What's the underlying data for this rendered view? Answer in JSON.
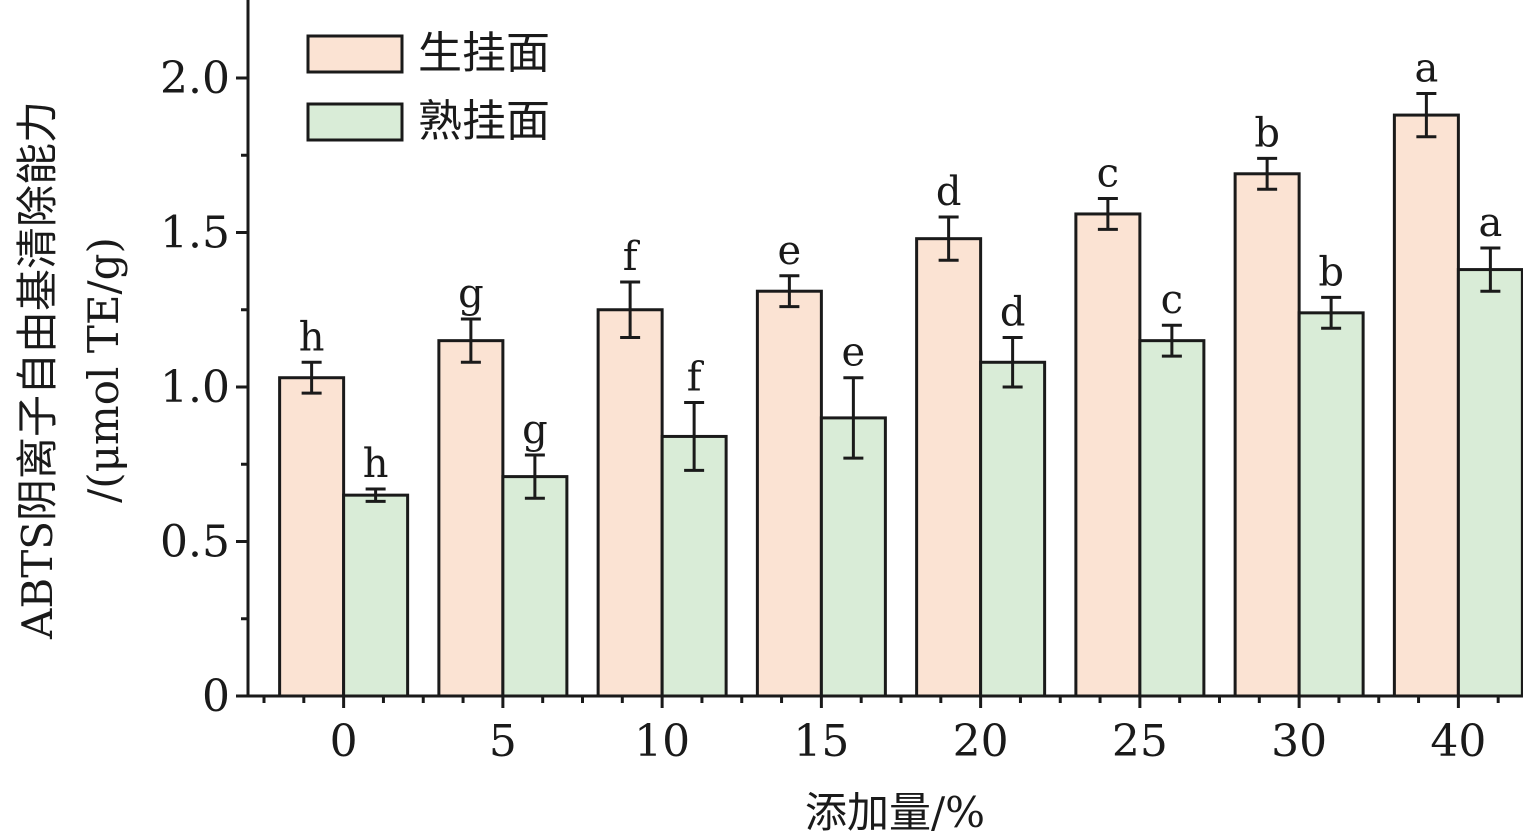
{
  "chart_data": {
    "type": "bar",
    "title": "",
    "xlabel": "添加量/%",
    "ylabel_lines": [
      "ABTS阴离子自由基清除能力",
      "/(μmol TE/g)"
    ],
    "categories": [
      "0",
      "5",
      "10",
      "15",
      "20",
      "25",
      "30",
      "40"
    ],
    "ylim": [
      0,
      2.25
    ],
    "yticks": [
      "0",
      "0.5",
      "1.0",
      "1.5",
      "2.0"
    ],
    "legend_position": "top-left",
    "grid": false,
    "series": [
      {
        "name": "生挂面",
        "color": "#fbe3d3",
        "values": [
          1.03,
          1.15,
          1.25,
          1.31,
          1.48,
          1.56,
          1.69,
          1.88
        ],
        "errors": [
          0.05,
          0.07,
          0.09,
          0.05,
          0.07,
          0.05,
          0.05,
          0.07
        ],
        "labels": [
          "h",
          "g",
          "f",
          "e",
          "d",
          "c",
          "b",
          "a"
        ]
      },
      {
        "name": "熟挂面",
        "color": "#d9ecd7",
        "values": [
          0.65,
          0.71,
          0.84,
          0.9,
          1.08,
          1.15,
          1.24,
          1.38
        ],
        "errors": [
          0.02,
          0.07,
          0.11,
          0.13,
          0.08,
          0.05,
          0.05,
          0.07
        ],
        "labels": [
          "h",
          "g",
          "f",
          "e",
          "d",
          "c",
          "b",
          "a"
        ]
      }
    ]
  }
}
